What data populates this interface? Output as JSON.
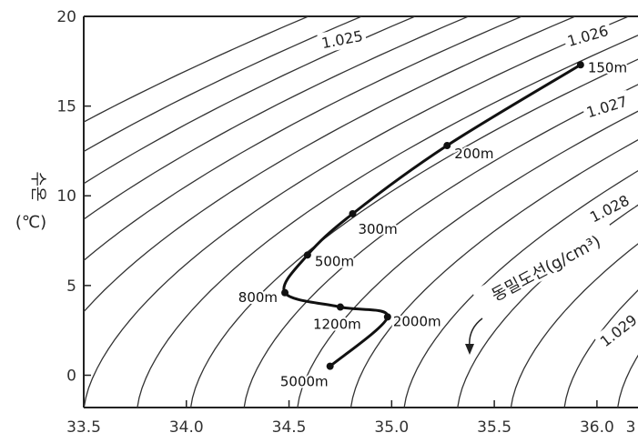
{
  "chart_data": {
    "type": "line",
    "xlabel": "",
    "ylabel": "수온",
    "ylabel_unit": "(℃)",
    "xlim": [
      33.5,
      36.2
    ],
    "ylim": [
      -1.8,
      20
    ],
    "x_ticks": [
      "33.5",
      "34.0",
      "34.5",
      "35.0",
      "35.5",
      "36.0",
      "3"
    ],
    "y_ticks": [
      "0",
      "5",
      "10",
      "15",
      "20"
    ],
    "isopycnal_title": "동밀도선(g/cm³)",
    "isopycnal_labels": [
      {
        "text": "1.025",
        "value": 1.025
      },
      {
        "text": "1.026",
        "value": 1.026
      },
      {
        "text": "1.027",
        "value": 1.027
      },
      {
        "text": "1.028",
        "value": 1.028
      },
      {
        "text": "1.029",
        "value": 1.029
      }
    ],
    "series": [
      {
        "points": [
          {
            "x": 35.92,
            "y": 17.3,
            "label": "150m"
          },
          {
            "x": 35.27,
            "y": 12.8,
            "label": "200m"
          },
          {
            "x": 34.81,
            "y": 9.0,
            "label": "300m"
          },
          {
            "x": 34.59,
            "y": 6.7,
            "label": "500m"
          },
          {
            "x": 34.48,
            "y": 4.6,
            "label": "800m"
          },
          {
            "x": 34.75,
            "y": 3.8,
            "label": "1200m"
          },
          {
            "x": 34.98,
            "y": 3.25,
            "label": "2000m"
          },
          {
            "x": 34.7,
            "y": 0.5,
            "label": "5000m"
          }
        ]
      }
    ]
  }
}
